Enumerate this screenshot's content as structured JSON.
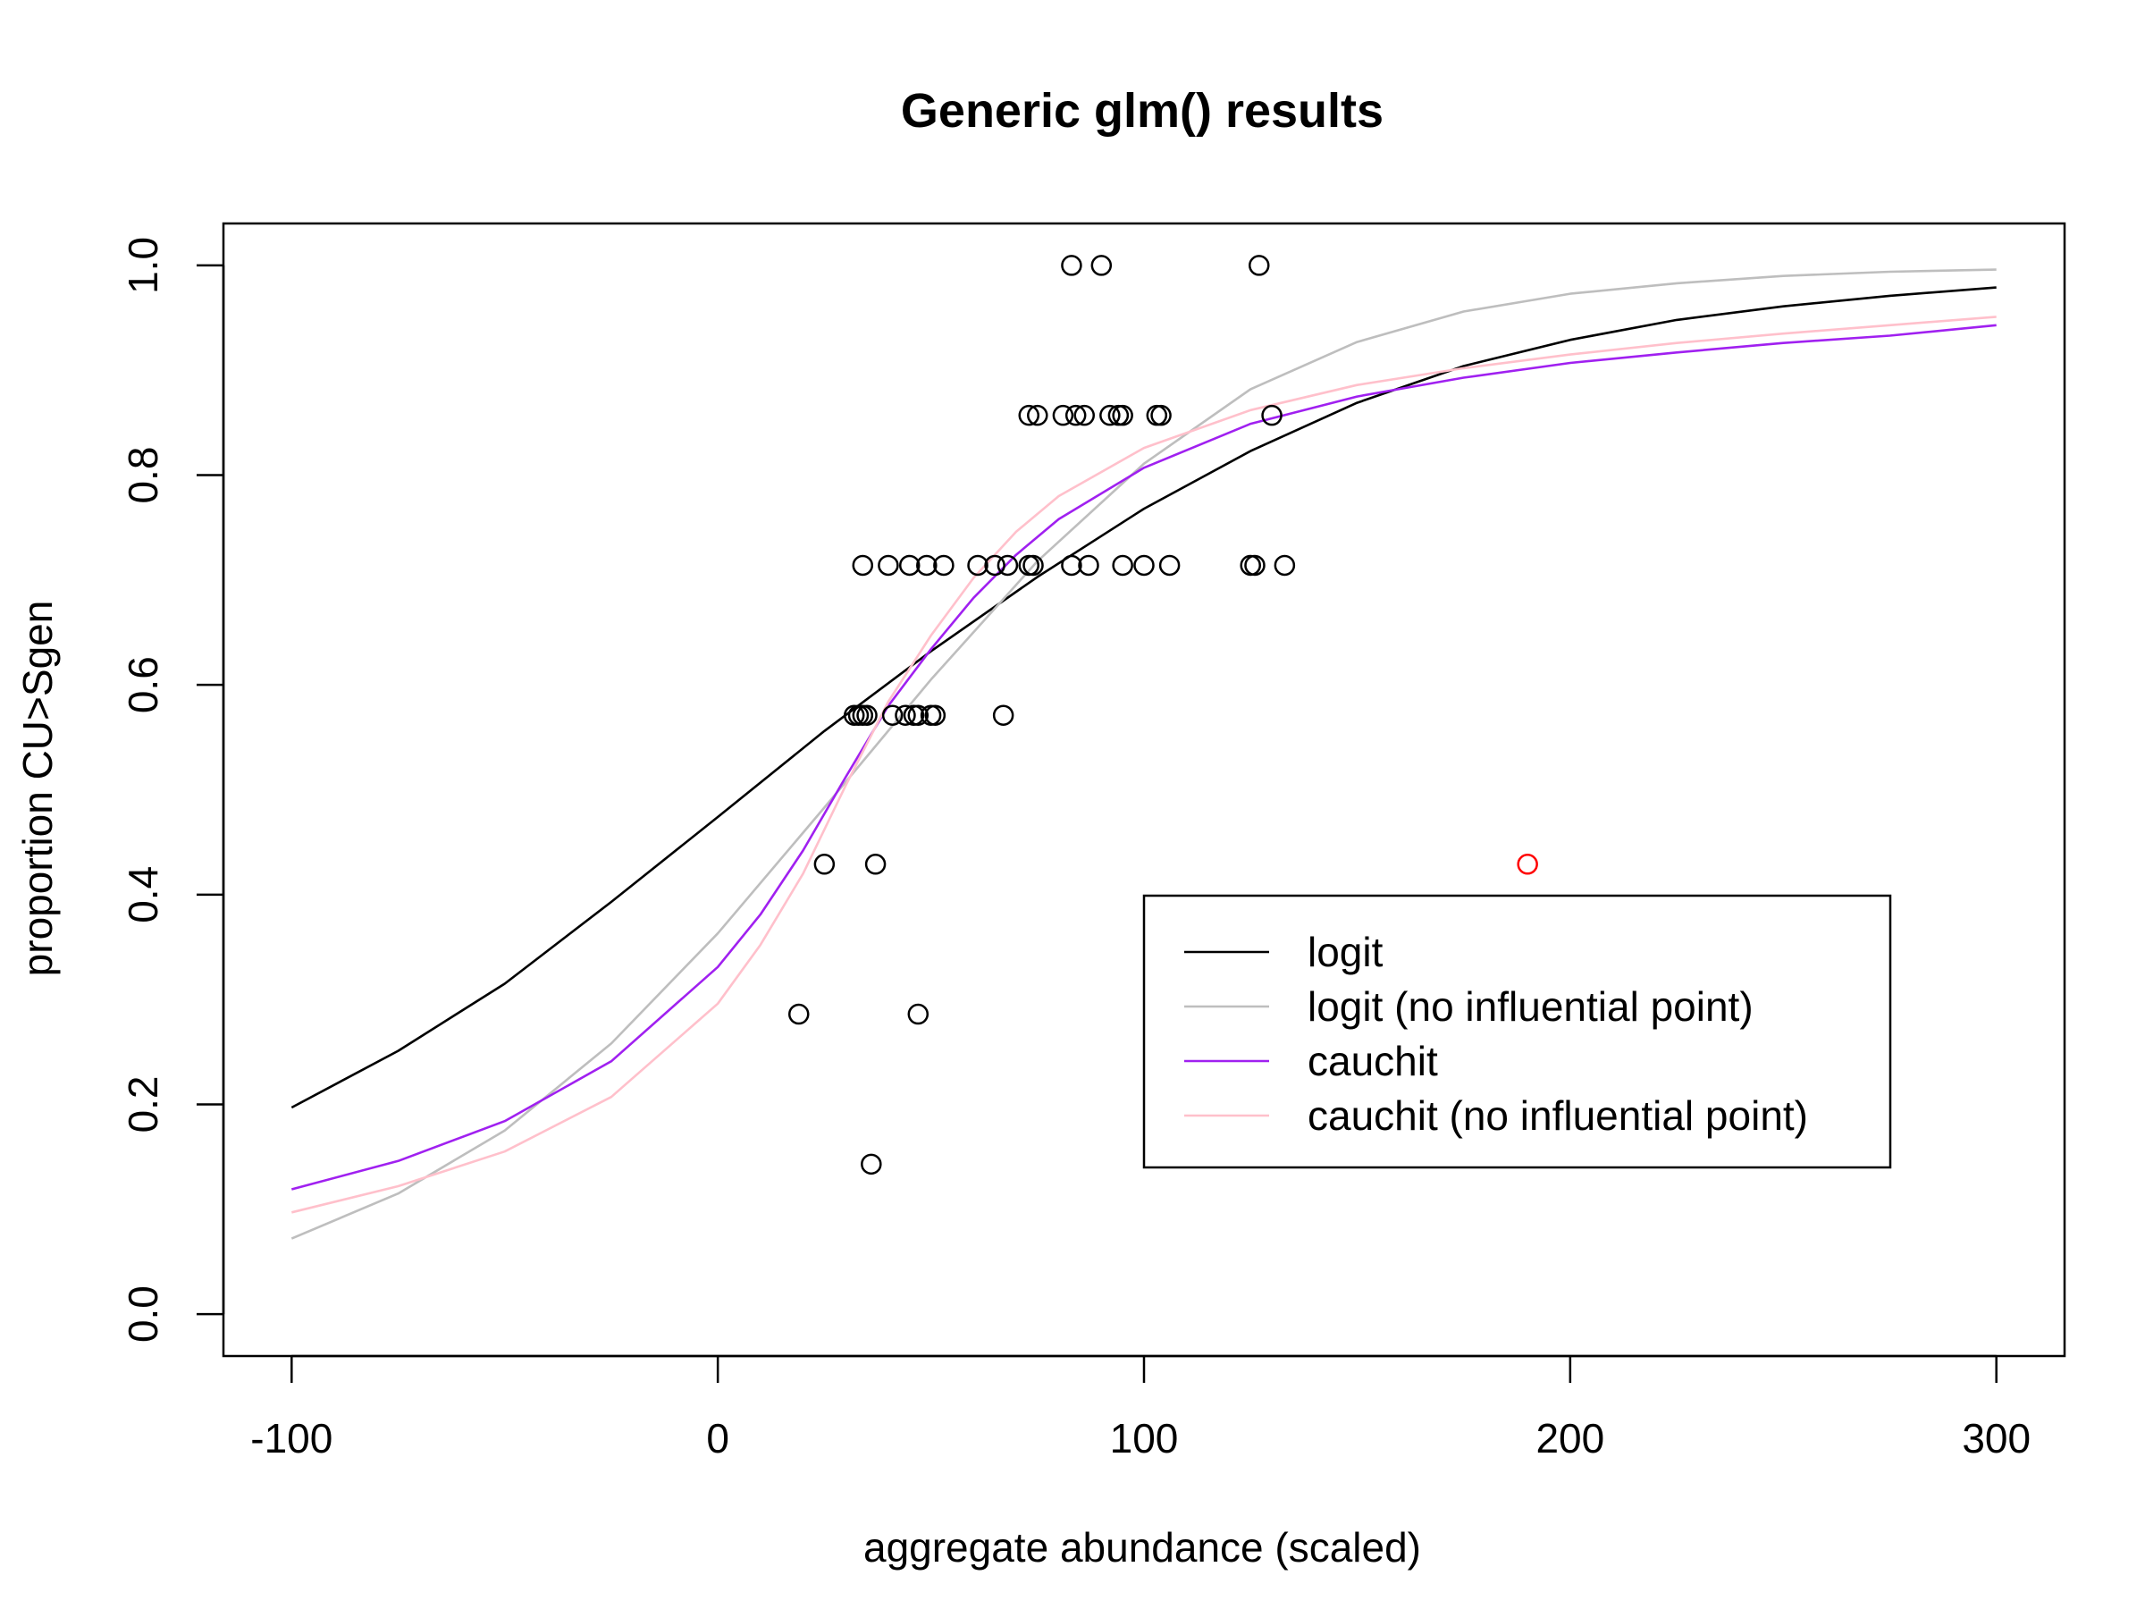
{
  "chart_data": {
    "type": "scatter",
    "title": "Generic glm() results",
    "xlabel": "aggregate abundance (scaled)",
    "ylabel": "proportion CU>Sgen",
    "xlim": [
      -116,
      316
    ],
    "ylim": [
      -0.04,
      1.04
    ],
    "x_ticks": [
      -100,
      0,
      100,
      200,
      300
    ],
    "x_tick_labels": [
      "-100",
      "0",
      "100",
      "200",
      "300"
    ],
    "y_ticks": [
      0.0,
      0.2,
      0.4,
      0.6,
      0.8,
      1.0
    ],
    "y_tick_labels": [
      "0.0",
      "0.2",
      "0.4",
      "0.6",
      "0.8",
      "1.0"
    ],
    "grid": false,
    "legend_position": "bottom-right",
    "points": [
      {
        "x": 83,
        "y": 1.0
      },
      {
        "x": 90,
        "y": 1.0
      },
      {
        "x": 127,
        "y": 1.0
      },
      {
        "x": 73,
        "y": 0.857
      },
      {
        "x": 75,
        "y": 0.857
      },
      {
        "x": 81,
        "y": 0.857
      },
      {
        "x": 84,
        "y": 0.857
      },
      {
        "x": 86,
        "y": 0.857
      },
      {
        "x": 92,
        "y": 0.857
      },
      {
        "x": 94,
        "y": 0.857
      },
      {
        "x": 95,
        "y": 0.857
      },
      {
        "x": 103,
        "y": 0.857
      },
      {
        "x": 104,
        "y": 0.857
      },
      {
        "x": 130,
        "y": 0.857
      },
      {
        "x": 34,
        "y": 0.714
      },
      {
        "x": 40,
        "y": 0.714
      },
      {
        "x": 45,
        "y": 0.714
      },
      {
        "x": 49,
        "y": 0.714
      },
      {
        "x": 53,
        "y": 0.714
      },
      {
        "x": 61,
        "y": 0.714
      },
      {
        "x": 65,
        "y": 0.714
      },
      {
        "x": 68,
        "y": 0.714
      },
      {
        "x": 73,
        "y": 0.714
      },
      {
        "x": 74,
        "y": 0.714
      },
      {
        "x": 83,
        "y": 0.714
      },
      {
        "x": 87,
        "y": 0.714
      },
      {
        "x": 95,
        "y": 0.714
      },
      {
        "x": 100,
        "y": 0.714
      },
      {
        "x": 106,
        "y": 0.714
      },
      {
        "x": 125,
        "y": 0.714
      },
      {
        "x": 126,
        "y": 0.714
      },
      {
        "x": 133,
        "y": 0.714
      },
      {
        "x": 32,
        "y": 0.571
      },
      {
        "x": 33,
        "y": 0.571
      },
      {
        "x": 34,
        "y": 0.571
      },
      {
        "x": 35,
        "y": 0.571
      },
      {
        "x": 41,
        "y": 0.571
      },
      {
        "x": 44,
        "y": 0.571
      },
      {
        "x": 46,
        "y": 0.571
      },
      {
        "x": 47,
        "y": 0.571
      },
      {
        "x": 50,
        "y": 0.571
      },
      {
        "x": 51,
        "y": 0.571
      },
      {
        "x": 67,
        "y": 0.571
      },
      {
        "x": 25,
        "y": 0.429
      },
      {
        "x": 37,
        "y": 0.429
      },
      {
        "x": 19,
        "y": 0.286
      },
      {
        "x": 47,
        "y": 0.286
      },
      {
        "x": 36,
        "y": 0.143
      },
      {
        "x": 190,
        "y": 0.429,
        "highlight": true
      }
    ],
    "series": [
      {
        "name": "logit",
        "color": "#000000",
        "x": [
          -100,
          -75,
          -50,
          -25,
          0,
          25,
          50,
          75,
          100,
          125,
          150,
          175,
          200,
          225,
          250,
          275,
          300
        ],
        "values": [
          0.197,
          0.251,
          0.315,
          0.393,
          0.474,
          0.556,
          0.632,
          0.703,
          0.768,
          0.823,
          0.869,
          0.904,
          0.929,
          0.948,
          0.961,
          0.971,
          0.979
        ]
      },
      {
        "name": "logit (no influential point)",
        "color": "#bebebe",
        "x": [
          -100,
          -75,
          -50,
          -25,
          0,
          25,
          50,
          75,
          100,
          125,
          150,
          175,
          200,
          225,
          250,
          275,
          300
        ],
        "values": [
          0.072,
          0.115,
          0.175,
          0.258,
          0.363,
          0.483,
          0.605,
          0.718,
          0.811,
          0.882,
          0.927,
          0.956,
          0.973,
          0.983,
          0.99,
          0.994,
          0.996
        ]
      },
      {
        "name": "cauchit",
        "color": "#a020f0",
        "x": [
          -100,
          -75,
          -50,
          -25,
          0,
          10,
          20,
          30,
          40,
          50,
          60,
          70,
          80,
          100,
          125,
          150,
          175,
          200,
          225,
          250,
          275,
          300
        ],
        "values": [
          0.119,
          0.146,
          0.184,
          0.241,
          0.331,
          0.381,
          0.442,
          0.512,
          0.58,
          0.634,
          0.683,
          0.724,
          0.758,
          0.807,
          0.849,
          0.875,
          0.893,
          0.907,
          0.917,
          0.926,
          0.933,
          0.943
        ]
      },
      {
        "name": "cauchit (no influential point)",
        "color": "#ffc0cb",
        "x": [
          -100,
          -75,
          -50,
          -25,
          0,
          10,
          20,
          30,
          40,
          50,
          60,
          70,
          80,
          100,
          125,
          150,
          175,
          200,
          225,
          250,
          275,
          300
        ],
        "values": [
          0.097,
          0.122,
          0.155,
          0.207,
          0.296,
          0.352,
          0.42,
          0.504,
          0.584,
          0.647,
          0.702,
          0.746,
          0.78,
          0.826,
          0.862,
          0.886,
          0.902,
          0.915,
          0.926,
          0.935,
          0.943,
          0.951
        ]
      }
    ]
  }
}
